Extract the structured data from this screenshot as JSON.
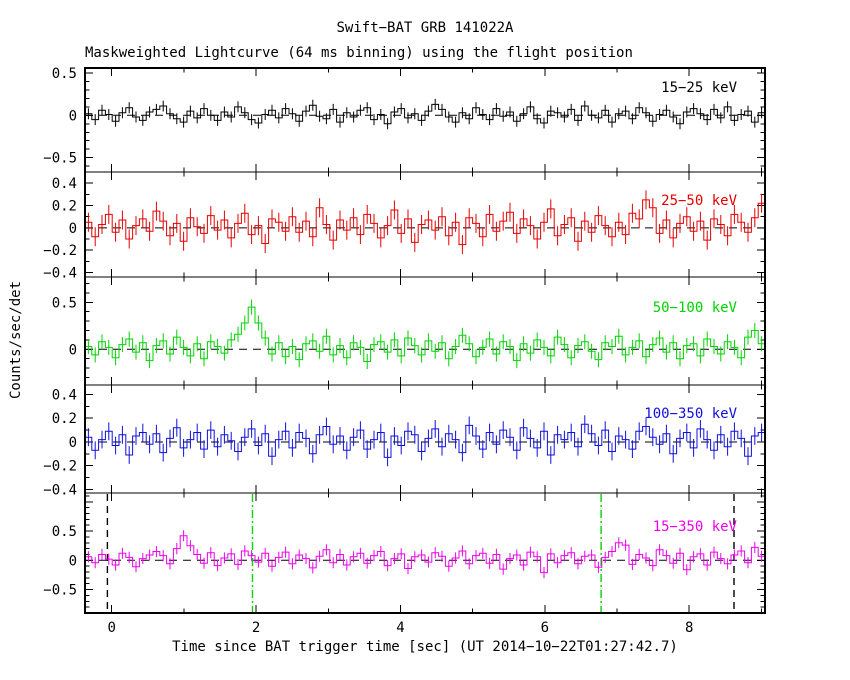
{
  "header": {
    "title": "Swift−BAT GRB 141022A",
    "subtitle": "Maskweighted Lightcurve (64 ms binning) using the flight position"
  },
  "axes": {
    "x_label": "Time since BAT trigger time [sec] (UT 2014−10−22T01:27:42.7)",
    "y_label": "Counts/sec/det",
    "xlim": [
      -0.37,
      9.05
    ],
    "x_major_ticks": [
      0,
      2,
      4,
      6,
      8
    ],
    "x_minor_step_sec": 1
  },
  "chart_data": {
    "type": "line",
    "subtype": "step-histogram-with-errorbars",
    "title": "Swift−BAT GRB 141022A",
    "xlabel": "Time since BAT trigger time [sec] (UT 2014−10−22T01:27:42.7)",
    "ylabel": "Counts/sec/det",
    "binning": "64 ms",
    "t_start": -0.37,
    "bin_width_sec": 0.0942,
    "value_scale": 0.01,
    "panels": [
      {
        "name": "15−25 keV",
        "color": "#000000",
        "ylim": [
          -0.67,
          0.56
        ],
        "ymajor": 0.5,
        "sigma": 0.065,
        "yticks": [
          {
            "label": "0.5",
            "v": 0.5
          },
          {
            "label": "0",
            "v": 0
          },
          {
            "label": "−0.5",
            "v": -0.5
          }
        ],
        "values_x100": [
          2,
          -5,
          6,
          1,
          -7,
          3,
          9,
          -2,
          -6,
          4,
          7,
          11,
          2,
          -4,
          -8,
          5,
          -3,
          8,
          0,
          -6,
          4,
          -2,
          10,
          3,
          -5,
          -9,
          1,
          6,
          -3,
          8,
          2,
          -7,
          5,
          12,
          -1,
          -4,
          7,
          -8,
          3,
          -2,
          6,
          9,
          -5,
          1,
          -10,
          4,
          8,
          -3,
          2,
          -6,
          5,
          13,
          7,
          -2,
          -8,
          3,
          -4,
          9,
          1,
          -5,
          8,
          -1,
          4,
          -7,
          2,
          10,
          -4,
          -9,
          5,
          3,
          -2,
          7,
          -6,
          11,
          0,
          -3,
          6,
          -8,
          2,
          5,
          -4,
          9,
          3,
          -7,
          1,
          6,
          -2,
          -10,
          4,
          8,
          2,
          -5,
          7,
          -3,
          10,
          -6,
          1,
          5,
          -8,
          3
        ]
      },
      {
        "name": "25−50 keV",
        "color": "#e60000",
        "ylim": [
          -0.44,
          0.5
        ],
        "ymajor": 0.2,
        "sigma": 0.085,
        "yticks": [
          {
            "label": "0.4",
            "v": 0.4
          },
          {
            "label": "0.2",
            "v": 0.2
          },
          {
            "label": "0",
            "v": 0
          },
          {
            "label": "−0.2",
            "v": -0.2
          },
          {
            "label": "−0.4",
            "v": -0.4
          }
        ],
        "values_x100": [
          5,
          -8,
          3,
          12,
          -4,
          7,
          -10,
          2,
          8,
          -3,
          15,
          6,
          -7,
          4,
          -12,
          9,
          1,
          -5,
          11,
          -2,
          7,
          -9,
          4,
          13,
          -6,
          2,
          -14,
          8,
          5,
          -3,
          10,
          -4,
          6,
          -8,
          18,
          3,
          -11,
          7,
          -2,
          9,
          -6,
          12,
          4,
          -9,
          2,
          16,
          -5,
          8,
          -13,
          3,
          7,
          -2,
          10,
          -7,
          5,
          -15,
          9,
          4,
          -8,
          12,
          -3,
          6,
          14,
          -5,
          8,
          2,
          -10,
          5,
          17,
          -7,
          3,
          9,
          -12,
          6,
          -4,
          11,
          2,
          -8,
          5,
          -6,
          13,
          8,
          25,
          18,
          -5,
          7,
          -9,
          4,
          10,
          -3,
          6,
          -11,
          8,
          3,
          -7,
          12,
          5,
          -4,
          9,
          22
        ]
      },
      {
        "name": "50−100 keV",
        "color": "#00d400",
        "ylim": [
          -0.38,
          0.77
        ],
        "ymajor": 0.5,
        "sigma": 0.08,
        "yticks": [
          {
            "label": "0.5",
            "v": 0.5
          },
          {
            "label": "0",
            "v": 0
          }
        ],
        "values_x100": [
          3,
          -6,
          8,
          2,
          -9,
          5,
          11,
          -3,
          7,
          -12,
          4,
          9,
          -5,
          13,
          2,
          -7,
          6,
          -10,
          8,
          3,
          -4,
          10,
          16,
          28,
          45,
          28,
          12,
          -5,
          7,
          -8,
          3,
          -11,
          6,
          9,
          -2,
          14,
          -6,
          4,
          -9,
          7,
          2,
          -13,
          5,
          8,
          -3,
          10,
          -7,
          12,
          4,
          -6,
          9,
          -2,
          7,
          -10,
          3,
          15,
          6,
          -8,
          2,
          11,
          -5,
          8,
          3,
          -12,
          6,
          -4,
          10,
          2,
          -7,
          13,
          5,
          -9,
          4,
          8,
          -2,
          -11,
          7,
          3,
          14,
          -6,
          2,
          9,
          -8,
          5,
          12,
          -3,
          7,
          -10,
          4,
          6,
          -7,
          11,
          3,
          -5,
          8,
          2,
          -9,
          13,
          20,
          6
        ]
      },
      {
        "name": "100−350 keV",
        "color": "#1010dd",
        "ylim": [
          -0.43,
          0.48
        ],
        "ymajor": 0.2,
        "sigma": 0.075,
        "yticks": [
          {
            "label": "0.4",
            "v": 0.4
          },
          {
            "label": "0.2",
            "v": 0.2
          },
          {
            "label": "0",
            "v": 0
          },
          {
            "label": "−0.2",
            "v": -0.2
          },
          {
            "label": "−0.4",
            "v": -0.4
          }
        ],
        "values_x100": [
          4,
          -7,
          2,
          9,
          -3,
          6,
          -11,
          5,
          8,
          -2,
          7,
          -9,
          3,
          12,
          -5,
          2,
          8,
          -6,
          10,
          -4,
          6,
          1,
          -8,
          4,
          11,
          -3,
          7,
          -12,
          2,
          9,
          -5,
          8,
          3,
          -10,
          6,
          13,
          -2,
          5,
          -7,
          4,
          10,
          -6,
          2,
          8,
          -13,
          5,
          -3,
          9,
          6,
          -8,
          3,
          11,
          -4,
          7,
          2,
          -9,
          14,
          5,
          -6,
          8,
          -2,
          10,
          4,
          -7,
          12,
          3,
          -5,
          9,
          -11,
          6,
          2,
          8,
          -4,
          15,
          7,
          -3,
          10,
          -8,
          5,
          2,
          -6,
          9,
          13,
          4,
          -2,
          7,
          -10,
          3,
          8,
          -5,
          11,
          2,
          -7,
          6,
          -4,
          9,
          3,
          -12,
          5,
          8
        ]
      },
      {
        "name": "15−350 keV",
        "color": "#ee00ee",
        "ylim": [
          -0.9,
          1.15
        ],
        "ymajor": 0.5,
        "sigma": 0.095,
        "yticks": [
          {
            "label": "0.5",
            "v": 0.5
          },
          {
            "label": "0",
            "v": 0
          },
          {
            "label": "−0.5",
            "v": -0.5
          }
        ],
        "vlines": [
          {
            "t": -0.06,
            "color": "#000000",
            "style": "dashed"
          },
          {
            "t": 1.95,
            "color": "#00d400",
            "style": "dashdot"
          },
          {
            "t": 6.78,
            "color": "#00d400",
            "style": "dashdot"
          },
          {
            "t": 8.62,
            "color": "#000000",
            "style": "dashed"
          }
        ],
        "values_x100": [
          6,
          -4,
          10,
          2,
          -8,
          12,
          5,
          -11,
          3,
          9,
          15,
          8,
          -6,
          20,
          42,
          25,
          10,
          -5,
          13,
          -9,
          4,
          11,
          -7,
          16,
          8,
          -3,
          12,
          -10,
          5,
          14,
          -6,
          9,
          3,
          -13,
          7,
          18,
          -4,
          10,
          -8,
          6,
          12,
          -5,
          8,
          15,
          -9,
          3,
          11,
          -14,
          6,
          9,
          -3,
          13,
          7,
          -10,
          4,
          16,
          -6,
          8,
          12,
          -5,
          10,
          -15,
          3,
          9,
          -8,
          14,
          6,
          -21,
          11,
          -4,
          8,
          13,
          -6,
          7,
          9,
          -12,
          5,
          15,
          30,
          26,
          -7,
          10,
          4,
          -9,
          18,
          8,
          -5,
          12,
          -16,
          6,
          11,
          -8,
          14,
          3,
          -6,
          9,
          16,
          -4,
          22,
          7
        ]
      }
    ]
  }
}
